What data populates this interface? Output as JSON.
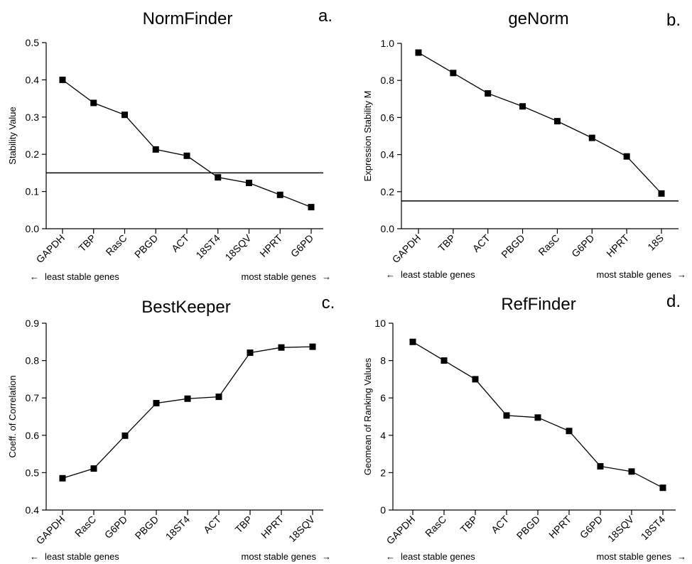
{
  "figure": {
    "arrow_left": "←",
    "arrow_right": "→",
    "line_color": "#000000",
    "marker_color": "#000000"
  },
  "chart_data": [
    {
      "type": "line",
      "title": "NormFinder",
      "panel_label": "a.",
      "ylabel": "Stability Value",
      "xlabel": "",
      "categories": [
        "GAPDH",
        "TBP",
        "RasC",
        "PBGD",
        "ACT",
        "18ST4",
        "18SQV",
        "HPRT",
        "G6PD"
      ],
      "values": [
        0.4,
        0.338,
        0.306,
        0.213,
        0.196,
        0.138,
        0.123,
        0.091,
        0.058
      ],
      "ylim": [
        0.0,
        0.5
      ],
      "yticks": [
        0.0,
        0.1,
        0.2,
        0.3,
        0.4,
        0.5
      ],
      "ytick_labels": [
        "0.0",
        "0.1",
        "0.2",
        "0.3",
        "0.4",
        "0.5"
      ],
      "threshold": 0.15,
      "note_left": "least stable genes",
      "note_right": "most stable genes",
      "grid": false
    },
    {
      "type": "line",
      "title": "geNorm",
      "panel_label": "b.",
      "ylabel": "Expression Stability M",
      "xlabel": "",
      "categories": [
        "GAPDH",
        "TBP",
        "ACT",
        "PBGD",
        "RasC",
        "G6PD",
        "HPRT",
        "18S"
      ],
      "values": [
        0.95,
        0.84,
        0.73,
        0.66,
        0.58,
        0.49,
        0.39,
        0.19
      ],
      "ylim": [
        0.0,
        1.0
      ],
      "yticks": [
        0.0,
        0.2,
        0.4,
        0.6,
        0.8,
        1.0
      ],
      "ytick_labels": [
        "0.0",
        "0.2",
        "0.4",
        "0.6",
        "0.8",
        "1.0"
      ],
      "threshold": 0.15,
      "note_left": "least stable genes",
      "note_right": "most stable genes",
      "grid": false
    },
    {
      "type": "line",
      "title": "BestKeeper",
      "panel_label": "c.",
      "ylabel": "Coeff. of Correlation",
      "xlabel": "",
      "categories": [
        "GAPDH",
        "RasC",
        "G6PD",
        "PBGD",
        "18ST4",
        "ACT",
        "TBP",
        "HPRT",
        "18SQV"
      ],
      "values": [
        0.485,
        0.511,
        0.599,
        0.686,
        0.698,
        0.703,
        0.821,
        0.835,
        0.837
      ],
      "ylim": [
        0.4,
        0.9
      ],
      "yticks": [
        0.4,
        0.5,
        0.6,
        0.7,
        0.8,
        0.9
      ],
      "ytick_labels": [
        "0.4",
        "0.5",
        "0.6",
        "0.7",
        "0.8",
        "0.9"
      ],
      "note_left": "least stable genes",
      "note_right": "most stable genes",
      "grid": false
    },
    {
      "type": "line",
      "title": "RefFinder",
      "panel_label": "d.",
      "ylabel": "Geomean of Ranking Values",
      "xlabel": "",
      "categories": [
        "GAPDH",
        "RasC",
        "TBP",
        "ACT",
        "PBGD",
        "HPRT",
        "G6PD",
        "18SQV",
        "18ST4"
      ],
      "values": [
        9.0,
        8.0,
        7.0,
        5.06,
        4.95,
        4.23,
        2.34,
        2.06,
        1.19
      ],
      "ylim": [
        0,
        10
      ],
      "yticks": [
        0,
        2,
        4,
        6,
        8,
        10
      ],
      "ytick_labels": [
        "0",
        "2",
        "4",
        "6",
        "8",
        "10"
      ],
      "note_left": "least stable genes",
      "note_right": "most stable genes",
      "grid": false
    }
  ]
}
